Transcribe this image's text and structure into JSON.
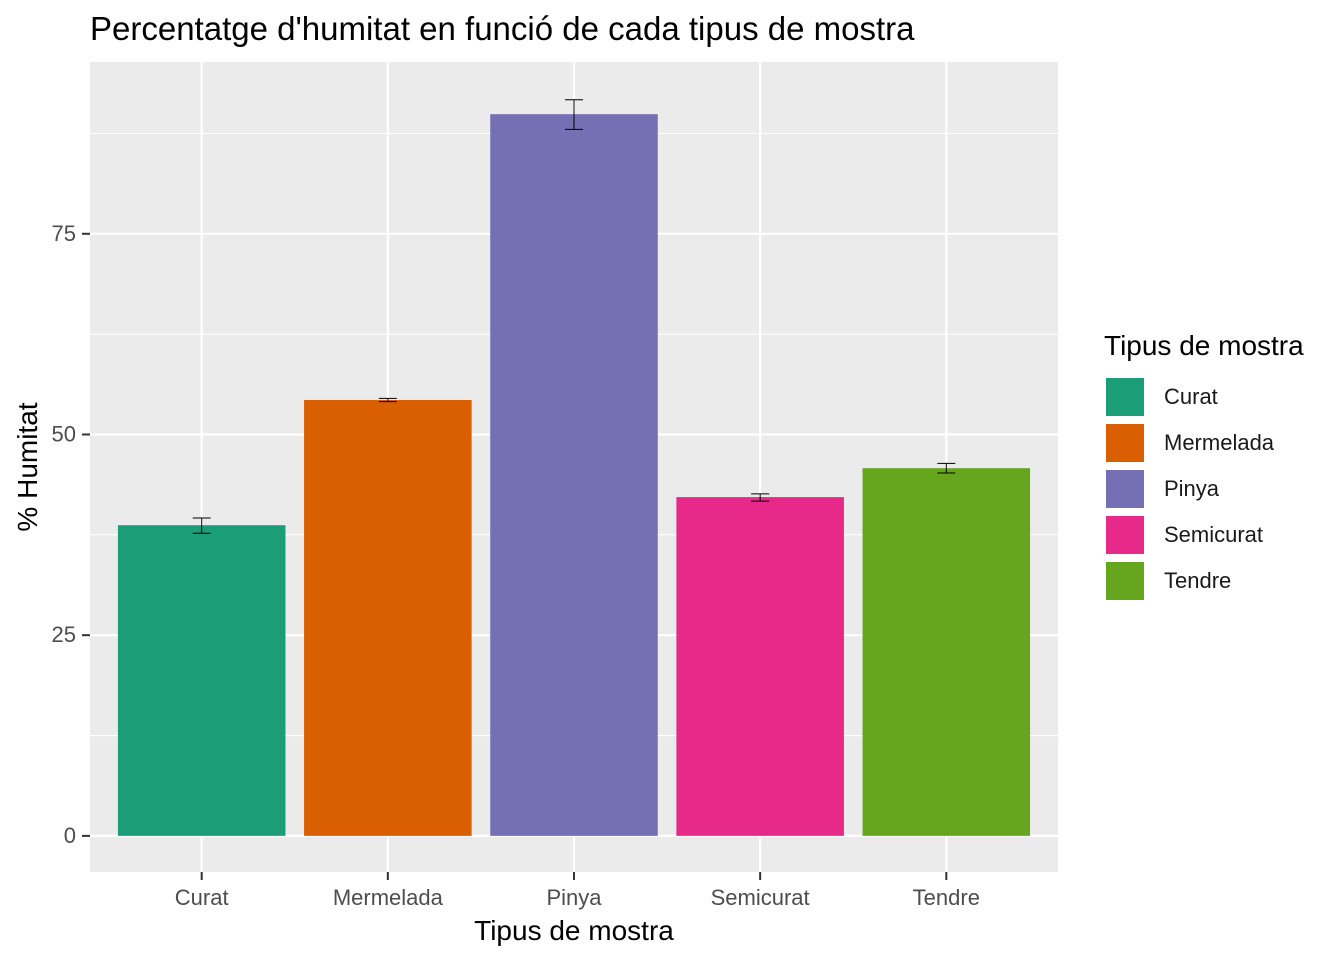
{
  "chart_data": {
    "type": "bar",
    "title": "Percentatge d'humitat en funció de cada tipus de mostra",
    "xlabel": "Tipus de mostra",
    "ylabel": "% Humitat",
    "categories": [
      "Curat",
      "Mermelada",
      "Pinya",
      "Semicurat",
      "Tendre"
    ],
    "values": [
      38.7,
      54.3,
      89.9,
      42.2,
      45.8
    ],
    "error": [
      {
        "low": 37.7,
        "high": 39.6
      },
      {
        "low": 54.1,
        "high": 54.5
      },
      {
        "low": 88.0,
        "high": 91.7
      },
      {
        "low": 41.7,
        "high": 42.6
      },
      {
        "low": 45.2,
        "high": 46.4
      }
    ],
    "colors": [
      "#1B9E77",
      "#D95F02",
      "#7570B3",
      "#E7298A",
      "#66A61E"
    ],
    "ylim": [
      -4.5,
      96.4
    ],
    "yticks": [
      0,
      25,
      50,
      75
    ],
    "ytick_labels": [
      "0",
      "25",
      "50",
      "75"
    ],
    "grid": true,
    "panel_background": "#EBEBEB",
    "legend": {
      "title": "Tipus de mostra",
      "position": "right",
      "entries": [
        "Curat",
        "Mermelada",
        "Pinya",
        "Semicurat",
        "Tendre"
      ]
    }
  }
}
